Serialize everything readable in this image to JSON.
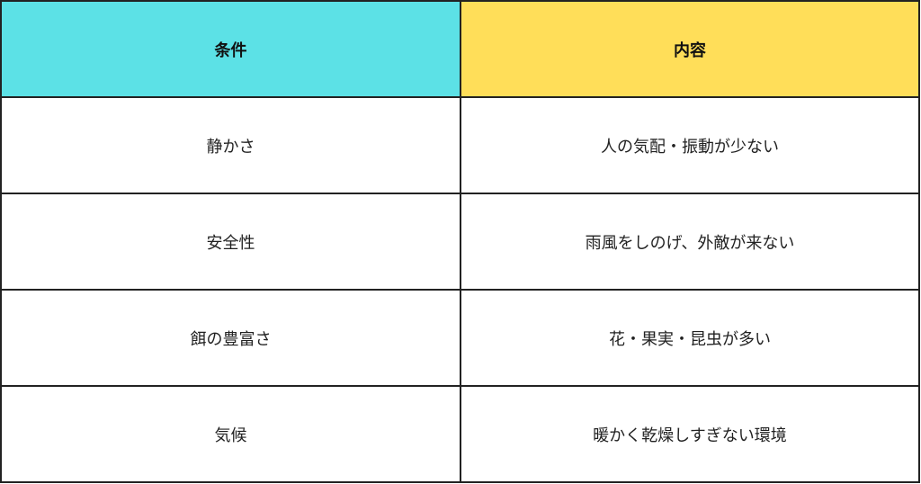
{
  "table": {
    "header_colors": [
      "#5ce1e6",
      "#ffde59"
    ],
    "headers": [
      "条件",
      "内容"
    ],
    "rows": [
      [
        "静かさ",
        "人の気配・振動が少ない"
      ],
      [
        "安全性",
        "雨風をしのげ、外敵が来ない"
      ],
      [
        "餌の豊富さ",
        "花・果実・昆虫が多い"
      ],
      [
        "気候",
        "暖かく乾燥しすぎない環境"
      ]
    ]
  }
}
